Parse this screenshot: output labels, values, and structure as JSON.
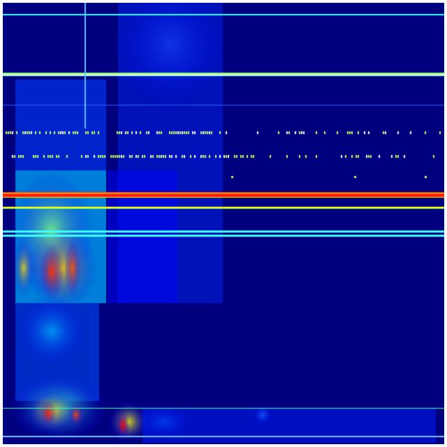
{
  "heatmap": {
    "colormap": "jet",
    "colors": {
      "background": "#00007f",
      "low": "#0000ff",
      "mid": "#00ffff",
      "high": "#ffff00",
      "peak": "#ff0000",
      "frame": "#ffffff"
    }
  }
}
